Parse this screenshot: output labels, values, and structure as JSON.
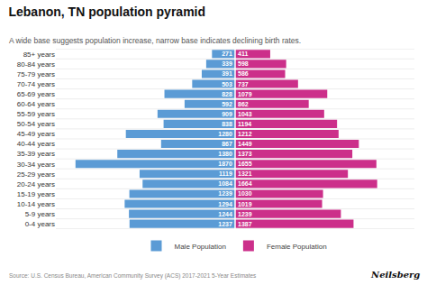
{
  "chart_data": {
    "type": "bar",
    "orientation": "horizontal",
    "title": "Lebanon, TN population pyramid",
    "subtitle": "A wide base suggests population increase, narrow base indicates declining birth rates.",
    "annotations": [
      "Source: U.S. Census Bureau, American Community Survey (ACS) 2017-2021 5-Year Estimates",
      "Neilsberg"
    ],
    "categories": [
      "0-4 years",
      "5-9 years",
      "10-14 years",
      "15-19 years",
      "20-24 years",
      "25-29 years",
      "30-34 years",
      "35-39 years",
      "40-44 years",
      "45-49 years",
      "50-54 years",
      "55-59 years",
      "60-64 years",
      "65-69 years",
      "70-74 years",
      "75-79 years",
      "80-84 years",
      "85+ years"
    ],
    "series": [
      {
        "name": "Male Population",
        "color": "#5B9BD5",
        "values": [
          1237,
          1244,
          1294,
          1239,
          1084,
          1119,
          1870,
          1380,
          867,
          1280,
          838,
          909,
          592,
          828,
          503,
          391,
          339,
          271
        ]
      },
      {
        "name": "Female Population",
        "color": "#CC2F8A",
        "values": [
          1387,
          1239,
          1019,
          1030,
          1664,
          1321,
          1655,
          1373,
          1449,
          1212,
          1194,
          1043,
          862,
          1079,
          737,
          586,
          598,
          411
        ]
      }
    ],
    "xlim": [
      0,
      2100
    ],
    "data_labels": true,
    "tick_labels": "y",
    "grid": true,
    "legend": "bottom"
  }
}
